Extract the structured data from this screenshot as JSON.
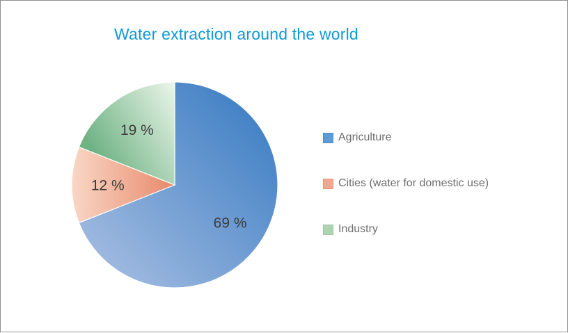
{
  "page": {
    "background": "#ffffff",
    "border_color": "#8f8f8f"
  },
  "chart_data": {
    "type": "pie",
    "title": "Water extraction around the world",
    "title_color": "#0f99d6",
    "label_color": "#3c3c3c",
    "legend_text_color": "#6e6e6e",
    "legend_position": "right",
    "start_angle_deg": 0,
    "direction": "clockwise",
    "units": "percent",
    "slices": [
      {
        "label": "Agriculture",
        "value": 69,
        "display": "69 %",
        "color_dark": "#4583c6",
        "color_light": "#9db8df",
        "swatch": "#5e9cd8",
        "swatch_border": "#4a88c4"
      },
      {
        "label": "Cities (water for domestic use)",
        "value": 12,
        "display": "12 %",
        "color_dark": "#e8896a",
        "color_light": "#f9d7c6",
        "swatch": "#f2a78e",
        "swatch_border": "#ec9476"
      },
      {
        "label": "Industry",
        "value": 19,
        "display": "19 %",
        "color_dark": "#6fb284",
        "color_light": "#ecf6ea",
        "swatch": "#aed4b0",
        "swatch_border": "#9cc8a0"
      }
    ]
  }
}
